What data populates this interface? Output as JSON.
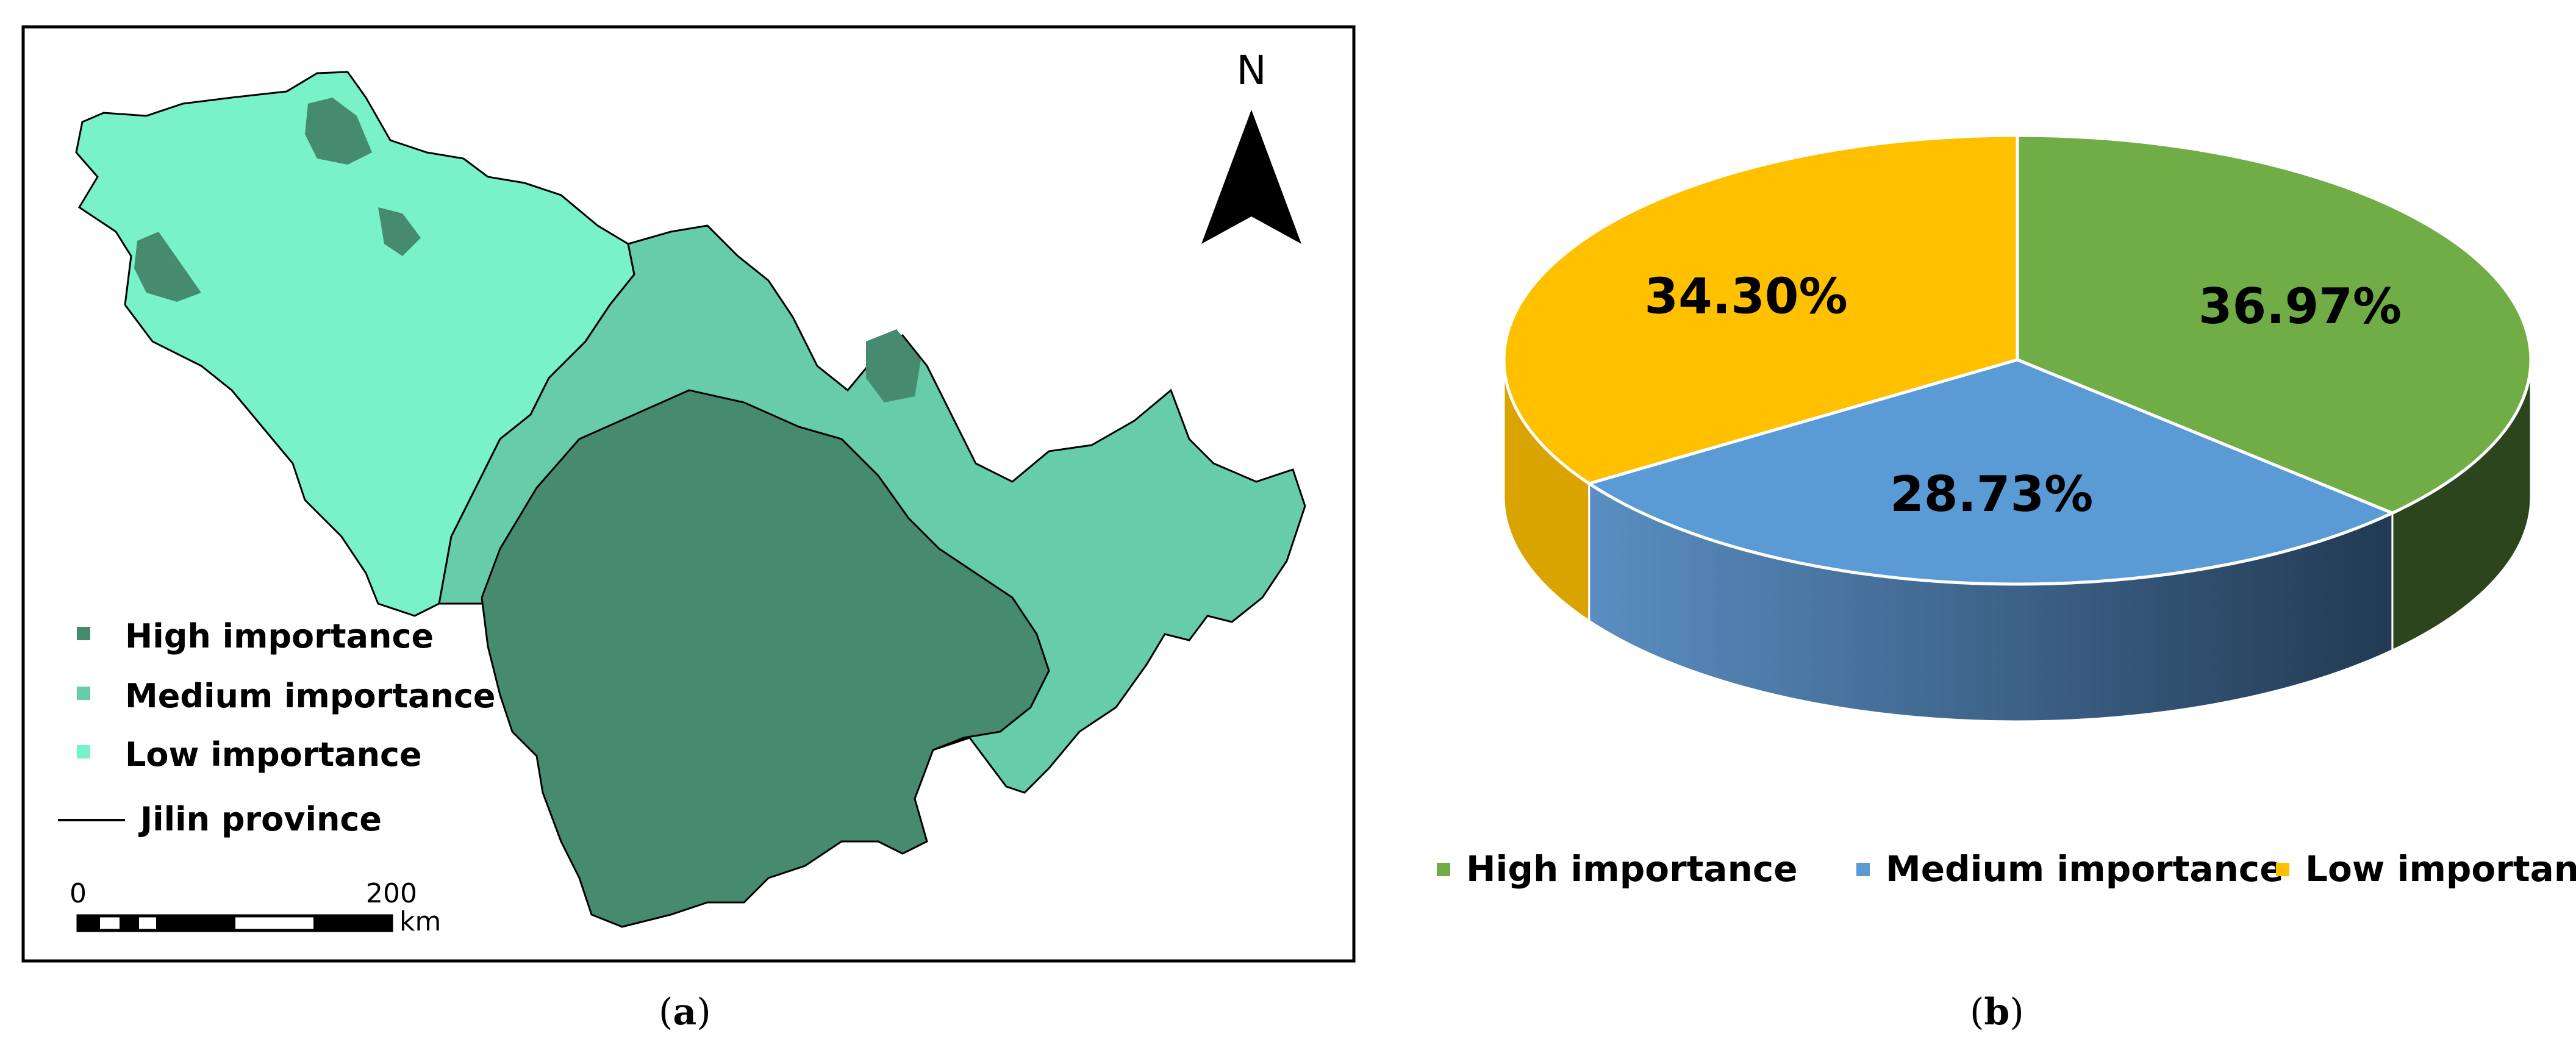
{
  "panel_a": {
    "label_open": "(",
    "label_letter": "a",
    "label_close": ")",
    "north_label": "N",
    "legend": [
      {
        "label": "High importance",
        "color": "#468a70"
      },
      {
        "label": "Medium importance",
        "color": "#66ccaa"
      },
      {
        "label": "Low importance",
        "color": "#7af2c9"
      },
      {
        "label": "Jilin province",
        "color": "#000000"
      }
    ],
    "scale_bar": {
      "start_label": "0",
      "end_label": "200",
      "unit": "km"
    }
  },
  "panel_b": {
    "label_open": "(",
    "label_letter": "b",
    "label_close": ")"
  },
  "chart_data": {
    "type": "pie",
    "style": "3d",
    "title": "",
    "legend_position": "bottom",
    "slices": [
      {
        "label": "High importance",
        "value": 36.97,
        "display": "36.97%",
        "color": "#70ad47"
      },
      {
        "label": "Medium importance",
        "value": 28.73,
        "display": "28.73%",
        "color": "#5b9bd5"
      },
      {
        "label": "Low importance",
        "value": 34.3,
        "display": "34.30%",
        "color": "#ffc000"
      }
    ]
  }
}
